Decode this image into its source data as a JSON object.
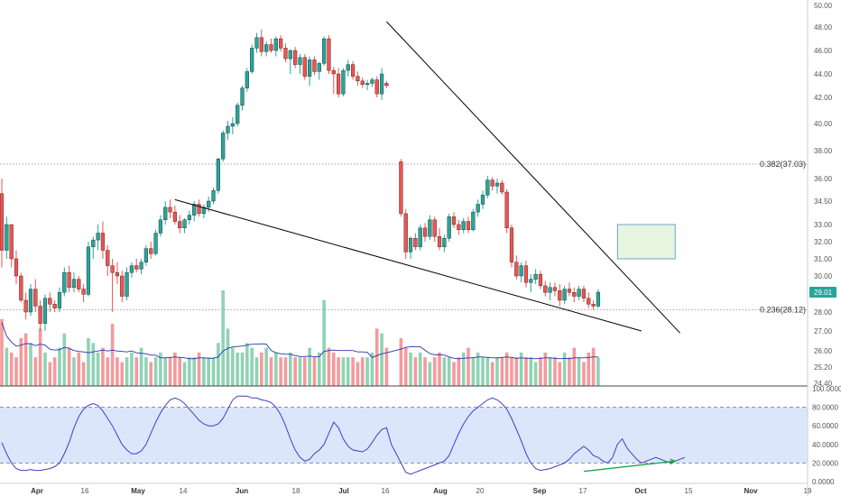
{
  "chart_data": [
    {
      "type": "candlestick",
      "title": "",
      "ylim": [
        24.4,
        50.0
      ],
      "y_tick_labels": [
        "50.00",
        "48.00",
        "46.00",
        "44.00",
        "42.00",
        "40.00",
        "38.00",
        "36.00",
        "34.50",
        "33.00",
        "32.00",
        "31.00",
        "30.00",
        "29.01",
        "28.00",
        "27.00",
        "26.00",
        "25.20",
        "24.40"
      ],
      "x_tick_labels": [
        "Apr",
        "16",
        "May",
        "14",
        "Jun",
        "18",
        "Jul",
        "16",
        "Aug",
        "20",
        "Sep",
        "17",
        "Oct",
        "15",
        "Nov",
        "19"
      ],
      "last_price": "29.01",
      "fib_levels": [
        {
          "label": "0.382(37.03)",
          "value": 37.03
        },
        {
          "label": "0.236(28.12)",
          "value": 28.12
        }
      ],
      "colors": {
        "up": "#26a69a",
        "down": "#ef5350",
        "volume_up": "#8fd3b4",
        "volume_down": "#f49a9d",
        "trendline": "#000000",
        "box": "#e8f5e0",
        "box_border": "#4a90c2",
        "price_tag": "#26a69a"
      },
      "ohlc": [
        [
          35.0,
          36.0,
          30.5,
          31.5
        ],
        [
          31.5,
          33.5,
          31.0,
          33.0
        ],
        [
          33.0,
          33.0,
          30.5,
          31.0
        ],
        [
          31.0,
          31.5,
          29.5,
          30.0
        ],
        [
          30.0,
          30.2,
          28.5,
          28.6
        ],
        [
          28.6,
          29.0,
          27.6,
          28.0
        ],
        [
          28.0,
          29.5,
          27.8,
          29.2
        ],
        [
          29.2,
          29.8,
          28.0,
          28.3
        ],
        [
          28.3,
          28.6,
          27.0,
          27.4
        ],
        [
          27.4,
          28.9,
          27.0,
          28.7
        ],
        [
          28.7,
          29.0,
          28.0,
          28.4
        ],
        [
          28.4,
          28.6,
          28.0,
          28.2
        ],
        [
          28.2,
          29.3,
          28.0,
          29.0
        ],
        [
          29.0,
          30.5,
          28.8,
          30.2
        ],
        [
          30.2,
          30.6,
          29.0,
          29.3
        ],
        [
          29.3,
          30.2,
          29.0,
          29.8
        ],
        [
          29.8,
          30.0,
          29.0,
          29.2
        ],
        [
          29.2,
          29.5,
          28.5,
          28.9
        ],
        [
          28.9,
          32.0,
          28.8,
          31.7
        ],
        [
          31.7,
          32.3,
          31.0,
          32.1
        ],
        [
          32.1,
          33.0,
          31.5,
          32.5
        ],
        [
          32.5,
          33.2,
          31.0,
          31.5
        ],
        [
          31.5,
          31.8,
          30.0,
          30.6
        ],
        [
          30.6,
          31.0,
          28.0,
          30.2
        ],
        [
          30.2,
          30.8,
          29.5,
          30.0
        ],
        [
          30.0,
          30.3,
          28.5,
          28.8
        ],
        [
          28.8,
          30.5,
          28.6,
          30.2
        ],
        [
          30.2,
          30.8,
          29.9,
          30.6
        ],
        [
          30.6,
          31.0,
          30.2,
          30.4
        ],
        [
          30.4,
          31.0,
          30.1,
          30.8
        ],
        [
          30.8,
          31.8,
          30.6,
          31.6
        ],
        [
          31.6,
          32.0,
          31.0,
          31.3
        ],
        [
          31.3,
          32.7,
          31.2,
          32.5
        ],
        [
          32.5,
          33.6,
          32.3,
          33.3
        ],
        [
          33.3,
          34.5,
          33.0,
          34.1
        ],
        [
          34.1,
          34.6,
          33.4,
          33.8
        ],
        [
          33.8,
          34.2,
          33.0,
          33.2
        ],
        [
          33.2,
          33.6,
          32.5,
          32.8
        ],
        [
          32.8,
          33.4,
          32.5,
          33.3
        ],
        [
          33.3,
          33.9,
          33.0,
          33.6
        ],
        [
          33.6,
          34.5,
          33.2,
          34.3
        ],
        [
          34.3,
          34.6,
          33.5,
          33.7
        ],
        [
          33.7,
          34.3,
          33.4,
          34.1
        ],
        [
          34.1,
          34.8,
          33.8,
          34.5
        ],
        [
          34.5,
          35.4,
          34.3,
          35.2
        ],
        [
          35.2,
          37.5,
          35.0,
          37.4
        ],
        [
          37.4,
          39.5,
          37.2,
          39.3
        ],
        [
          39.3,
          40.2,
          38.8,
          39.8
        ],
        [
          39.8,
          40.5,
          39.2,
          40.0
        ],
        [
          40.0,
          41.6,
          39.8,
          41.4
        ],
        [
          41.4,
          43.0,
          41.0,
          42.8
        ],
        [
          42.8,
          44.5,
          42.5,
          44.2
        ],
        [
          44.2,
          46.5,
          44.0,
          46.2
        ],
        [
          46.2,
          47.5,
          45.8,
          47.1
        ],
        [
          47.1,
          47.8,
          45.5,
          45.9
        ],
        [
          45.9,
          46.8,
          45.5,
          46.5
        ],
        [
          46.5,
          47.0,
          45.8,
          46.0
        ],
        [
          46.0,
          47.2,
          45.5,
          47.0
        ],
        [
          47.0,
          47.3,
          45.9,
          46.2
        ],
        [
          46.2,
          46.6,
          45.0,
          45.3
        ],
        [
          45.3,
          46.1,
          44.0,
          46.0
        ],
        [
          46.0,
          46.3,
          44.5,
          44.8
        ],
        [
          44.8,
          45.7,
          44.0,
          45.4
        ],
        [
          45.4,
          45.7,
          43.5,
          43.8
        ],
        [
          43.8,
          45.5,
          43.0,
          45.2
        ],
        [
          45.2,
          45.5,
          43.9,
          44.2
        ],
        [
          44.2,
          45.0,
          43.5,
          44.9
        ],
        [
          44.9,
          47.2,
          44.7,
          47.0
        ],
        [
          47.0,
          47.3,
          44.0,
          44.3
        ],
        [
          44.3,
          44.6,
          42.3,
          44.0
        ],
        [
          44.0,
          44.5,
          42.0,
          42.3
        ],
        [
          42.3,
          44.5,
          42.1,
          44.3
        ],
        [
          44.3,
          45.2,
          43.8,
          44.8
        ],
        [
          44.8,
          45.1,
          43.5,
          43.8
        ],
        [
          43.8,
          44.2,
          43.0,
          43.4
        ],
        [
          43.4,
          43.7,
          42.8,
          43.1
        ],
        [
          43.1,
          43.5,
          42.6,
          43.2
        ],
        [
          43.2,
          43.7,
          42.9,
          43.5
        ],
        [
          43.5,
          43.8,
          42.0,
          42.3
        ],
        [
          42.3,
          44.5,
          41.8,
          44.0
        ],
        [
          43.2,
          43.4,
          42.8,
          43.0
        ],
        null,
        null,
        [
          37.2,
          37.4,
          33.5,
          33.7
        ],
        [
          33.7,
          34.0,
          31.0,
          31.4
        ],
        [
          31.4,
          32.3,
          31.0,
          32.2
        ],
        [
          32.2,
          32.5,
          31.5,
          31.7
        ],
        [
          31.7,
          33.0,
          31.5,
          32.8
        ],
        [
          32.8,
          33.1,
          32.0,
          32.3
        ],
        [
          32.3,
          33.6,
          32.1,
          33.3
        ],
        [
          33.3,
          33.5,
          32.0,
          32.3
        ],
        [
          32.3,
          32.8,
          31.5,
          31.7
        ],
        [
          31.7,
          32.4,
          31.4,
          32.2
        ],
        [
          32.2,
          33.7,
          32.0,
          33.5
        ],
        [
          33.5,
          33.8,
          32.8,
          33.0
        ],
        [
          33.0,
          33.3,
          32.4,
          32.7
        ],
        [
          32.7,
          33.4,
          32.5,
          33.2
        ],
        [
          33.2,
          33.5,
          32.5,
          32.7
        ],
        [
          32.7,
          34.0,
          32.6,
          33.8
        ],
        [
          33.8,
          34.6,
          33.5,
          34.3
        ],
        [
          34.3,
          35.2,
          34.0,
          34.9
        ],
        [
          34.9,
          36.2,
          34.7,
          35.9
        ],
        [
          35.9,
          36.1,
          35.2,
          35.5
        ],
        [
          35.5,
          36.0,
          35.0,
          35.7
        ],
        [
          35.7,
          35.9,
          34.9,
          35.1
        ],
        [
          35.1,
          35.3,
          32.5,
          32.8
        ],
        [
          32.8,
          33.0,
          30.5,
          30.8
        ],
        [
          30.8,
          31.2,
          29.8,
          30.0
        ],
        [
          30.0,
          30.8,
          29.6,
          30.6
        ],
        [
          30.6,
          30.9,
          29.3,
          29.6
        ],
        [
          29.6,
          30.1,
          29.0,
          29.8
        ],
        [
          29.8,
          30.4,
          29.5,
          30.1
        ],
        [
          30.1,
          30.3,
          29.2,
          29.4
        ],
        [
          29.4,
          29.7,
          28.8,
          29.0
        ],
        [
          29.0,
          29.6,
          28.6,
          29.3
        ],
        [
          29.3,
          29.6,
          28.8,
          29.1
        ],
        [
          29.1,
          29.5,
          28.3,
          28.6
        ],
        [
          28.6,
          29.4,
          28.4,
          29.2
        ],
        [
          29.2,
          29.6,
          28.8,
          29.0
        ],
        [
          29.0,
          29.3,
          28.5,
          28.8
        ],
        [
          28.8,
          29.4,
          28.6,
          29.2
        ],
        [
          29.2,
          29.4,
          28.5,
          28.7
        ],
        [
          28.7,
          29.0,
          28.2,
          28.4
        ],
        [
          28.4,
          28.6,
          28.1,
          28.3
        ],
        [
          28.3,
          29.2,
          28.2,
          29.01
        ]
      ],
      "volume_heights": [
        0.7,
        0.4,
        0.35,
        0.3,
        0.5,
        0.55,
        0.45,
        0.3,
        0.6,
        0.35,
        0.25,
        0.3,
        0.4,
        0.55,
        0.4,
        0.3,
        0.35,
        0.25,
        0.5,
        0.45,
        0.35,
        0.4,
        0.3,
        0.65,
        0.3,
        0.25,
        0.3,
        0.35,
        0.3,
        0.4,
        0.3,
        0.25,
        0.3,
        0.35,
        0.3,
        0.3,
        0.35,
        0.3,
        0.25,
        0.3,
        0.3,
        0.35,
        0.3,
        0.3,
        0.3,
        0.45,
        1.0,
        0.6,
        0.4,
        0.35,
        0.35,
        0.45,
        0.4,
        0.3,
        0.35,
        0.4,
        0.3,
        0.35,
        0.3,
        0.3,
        0.35,
        0.3,
        0.3,
        0.3,
        0.4,
        0.3,
        0.35,
        0.9,
        0.4,
        0.35,
        0.3,
        0.3,
        0.3,
        0.3,
        0.25,
        0.3,
        0.3,
        0.35,
        0.6,
        0.55,
        0.4,
        0.85,
        0.7,
        0.5,
        0.4,
        0.35,
        0.3,
        0.35,
        0.3,
        0.25,
        0.3,
        0.35,
        0.3,
        0.3,
        0.25,
        0.3,
        0.35,
        0.4,
        0.3,
        0.35,
        0.3,
        0.3,
        0.25,
        0.3,
        0.3,
        0.35,
        0.3,
        0.3,
        0.35,
        0.3,
        0.3,
        0.25,
        0.3,
        0.35,
        0.3,
        0.3,
        0.25,
        0.35,
        0.3,
        0.4,
        0.3,
        0.25,
        0.35,
        0.4,
        0.3,
        0.3
      ],
      "trendlines": [
        {
          "from": [
            36,
            34.6
          ],
          "to": [
            133,
            27.0
          ]
        },
        {
          "from": [
            80,
            48.5
          ],
          "to": [
            141,
            26.9
          ]
        }
      ],
      "highlight_box": {
        "x_index": [
          128,
          140
        ],
        "y_range": [
          31.0,
          33.0
        ]
      }
    },
    {
      "type": "line",
      "title": "",
      "ylim": [
        0,
        100
      ],
      "y_tick_labels": [
        "100.0000",
        "80.0000",
        "60.0000",
        "40.0000",
        "20.0000",
        "0.0000"
      ],
      "band": [
        20,
        80
      ],
      "series": [
        {
          "values": [
            42,
            30,
            20,
            14,
            12,
            12,
            13,
            12,
            12,
            13,
            14,
            16,
            20,
            30,
            42,
            58,
            70,
            78,
            82,
            84,
            82,
            76,
            68,
            60,
            50,
            40,
            34,
            30,
            30,
            33,
            40,
            52,
            64,
            74,
            82,
            88,
            90,
            88,
            84,
            78,
            72,
            66,
            62,
            60,
            60,
            62,
            68,
            78,
            88,
            92,
            92,
            92,
            90,
            90,
            88,
            87,
            85,
            80,
            72,
            60,
            46,
            34,
            26,
            22,
            24,
            30,
            34,
            40,
            52,
            64,
            58,
            46,
            38,
            34,
            33,
            32,
            35,
            42,
            50,
            56,
            58,
            40,
            30,
            20,
            10,
            8,
            10,
            12,
            14,
            16,
            18,
            20,
            22,
            28,
            40,
            52,
            62,
            70,
            76,
            80,
            84,
            88,
            90,
            88,
            84,
            78,
            68,
            56,
            44,
            30,
            20,
            14,
            12,
            13,
            14,
            16,
            18,
            20,
            24,
            30,
            34,
            38,
            34,
            28,
            26,
            22,
            20,
            26,
            40,
            46,
            36,
            30,
            24,
            20,
            22,
            24,
            26,
            24,
            22,
            20,
            22,
            24,
            26
          ]
        }
      ],
      "trend_arrow": {
        "from": [
          121,
          11
        ],
        "to": [
          140,
          22
        ]
      },
      "colors": {
        "line": "#3b41c5",
        "band_fill": "#dce6fb",
        "arrow": "#20a84a"
      }
    }
  ]
}
